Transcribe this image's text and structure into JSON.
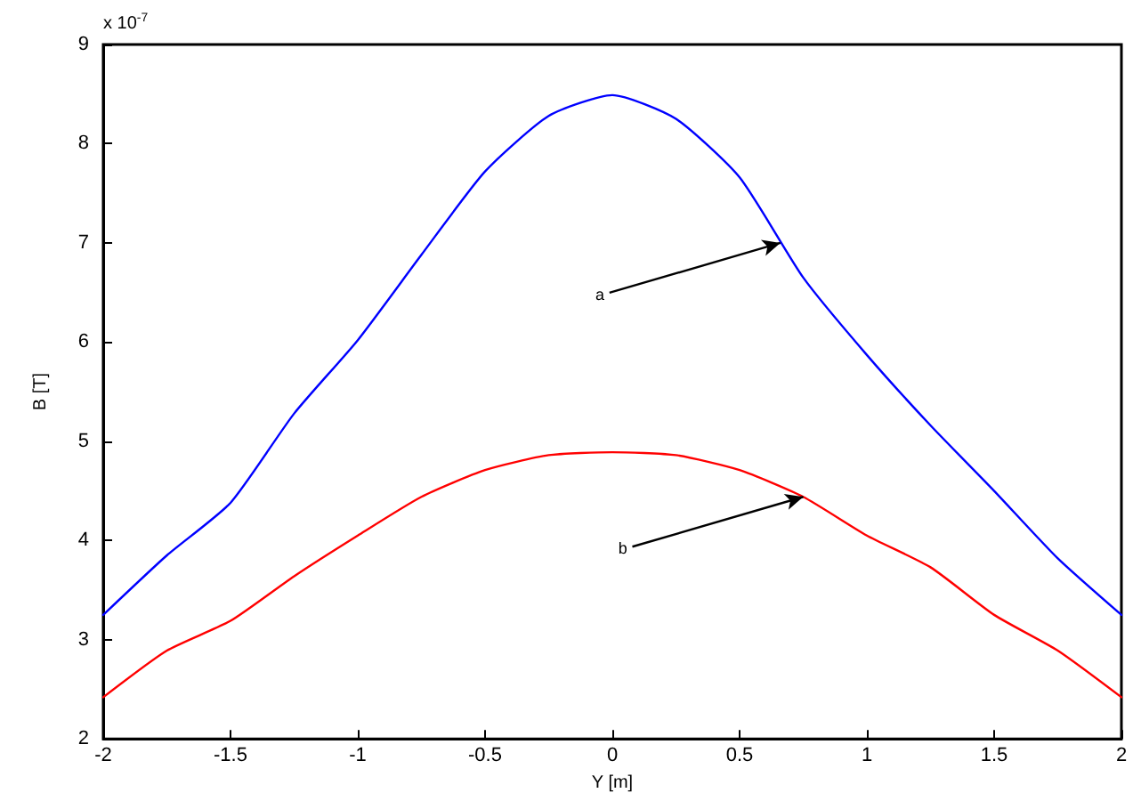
{
  "chart_data": {
    "type": "line",
    "xlabel": "Y [m]",
    "ylabel": "B [T]",
    "x": [
      -2,
      -1.75,
      -1.5,
      -1.25,
      -1,
      -0.75,
      -0.5,
      -0.25,
      0,
      0.25,
      0.5,
      0.75,
      1,
      1.25,
      1.5,
      1.75,
      2
    ],
    "series": [
      {
        "color": "#0000ff",
        "values": [
          3.25,
          3.85,
          4.38,
          5.28,
          6.02,
          6.88,
          7.72,
          8.28,
          8.49,
          8.25,
          7.66,
          6.65,
          5.87,
          5.16,
          4.5,
          3.82,
          3.25
        ]
      },
      {
        "color": "#ff0000",
        "values": [
          2.42,
          2.89,
          3.19,
          3.64,
          4.05,
          4.44,
          4.71,
          4.86,
          4.89,
          4.86,
          4.71,
          4.44,
          4.05,
          3.73,
          3.25,
          2.89,
          2.42
        ]
      }
    ],
    "xlim": [
      -2,
      2
    ],
    "xticks": [
      -2,
      -1.5,
      -1,
      -0.5,
      0,
      0.5,
      1,
      1.5,
      2
    ],
    "ylim": [
      2,
      9
    ],
    "yticks": [
      2,
      3,
      4,
      5,
      6,
      7,
      8,
      9
    ],
    "annotations": [
      "x 10$^{-7}$",
      {
        "text": "a",
        "x": 0.66,
        "y": 7.0
      },
      {
        "text": "b",
        "x": 0.75,
        "y": 4.44
      }
    ],
    "grid": false,
    "marker": "none",
    "line_style": "solid"
  }
}
